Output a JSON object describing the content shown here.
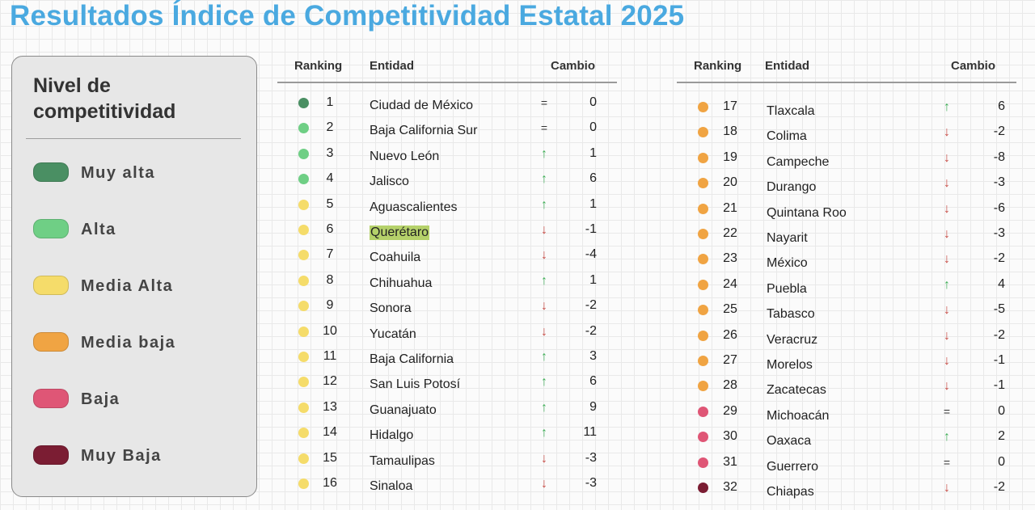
{
  "title": "Resultados Índice de Competitividad Estatal 2025",
  "legend": {
    "title": "Nivel de competitividad",
    "items": [
      {
        "label": "Muy alta",
        "color": "#4a8f63"
      },
      {
        "label": "Alta",
        "color": "#6fcf85"
      },
      {
        "label": "Media Alta",
        "color": "#f5dc6a"
      },
      {
        "label": "Media baja",
        "color": "#f0a443"
      },
      {
        "label": "Baja",
        "color": "#df5676"
      },
      {
        "label": "Muy Baja",
        "color": "#7b1d33"
      }
    ]
  },
  "headers": {
    "ranking": "Ranking",
    "entidad": "Entidad",
    "cambio": "Cambio"
  },
  "colors": {
    "muy_alta": "#4a8f63",
    "alta": "#6fcf85",
    "media_alta": "#f5dc6a",
    "media_baja": "#f0a443",
    "baja": "#df5676",
    "muy_baja": "#7b1d33"
  },
  "table_left": [
    {
      "rank": "1",
      "entity": "Ciudad de México",
      "trend": "=",
      "change": "0",
      "level": "muy_alta"
    },
    {
      "rank": "2",
      "entity": "Baja California Sur",
      "trend": "=",
      "change": "0",
      "level": "alta"
    },
    {
      "rank": "3",
      "entity": "Nuevo León",
      "trend": "↑",
      "change": "1",
      "level": "alta"
    },
    {
      "rank": "4",
      "entity": "Jalisco",
      "trend": "↑",
      "change": "6",
      "level": "alta"
    },
    {
      "rank": "5",
      "entity": "Aguascalientes",
      "trend": "↑",
      "change": "1",
      "level": "media_alta"
    },
    {
      "rank": "6",
      "entity": "Querétaro",
      "trend": "↓",
      "change": "-1",
      "level": "media_alta",
      "highlight": true
    },
    {
      "rank": "7",
      "entity": "Coahuila",
      "trend": "↓",
      "change": "-4",
      "level": "media_alta"
    },
    {
      "rank": "8",
      "entity": "Chihuahua",
      "trend": "↑",
      "change": "1",
      "level": "media_alta"
    },
    {
      "rank": "9",
      "entity": "Sonora",
      "trend": "↓",
      "change": "-2",
      "level": "media_alta"
    },
    {
      "rank": "10",
      "entity": "Yucatán",
      "trend": "↓",
      "change": "-2",
      "level": "media_alta"
    },
    {
      "rank": "11",
      "entity": "Baja California",
      "trend": "↑",
      "change": "3",
      "level": "media_alta"
    },
    {
      "rank": "12",
      "entity": "San Luis Potosí",
      "trend": "↑",
      "change": "6",
      "level": "media_alta"
    },
    {
      "rank": "13",
      "entity": "Guanajuato",
      "trend": "↑",
      "change": "9",
      "level": "media_alta"
    },
    {
      "rank": "14",
      "entity": "Hidalgo",
      "trend": "↑",
      "change": "11",
      "level": "media_alta"
    },
    {
      "rank": "15",
      "entity": "Tamaulipas",
      "trend": "↓",
      "change": "-3",
      "level": "media_alta"
    },
    {
      "rank": "16",
      "entity": "Sinaloa",
      "trend": "↓",
      "change": "-3",
      "level": "media_alta"
    }
  ],
  "table_right": [
    {
      "rank": "17",
      "entity": "Tlaxcala",
      "trend": "↑",
      "change": "6",
      "level": "media_baja"
    },
    {
      "rank": "18",
      "entity": "Colima",
      "trend": "↓",
      "change": "-2",
      "level": "media_baja"
    },
    {
      "rank": "19",
      "entity": "Campeche",
      "trend": "↓",
      "change": "-8",
      "level": "media_baja"
    },
    {
      "rank": "20",
      "entity": "Durango",
      "trend": "↓",
      "change": "-3",
      "level": "media_baja"
    },
    {
      "rank": "21",
      "entity": "Quintana Roo",
      "trend": "↓",
      "change": "-6",
      "level": "media_baja"
    },
    {
      "rank": "22",
      "entity": "Nayarit",
      "trend": "↓",
      "change": "-3",
      "level": "media_baja"
    },
    {
      "rank": "23",
      "entity": "México",
      "trend": "↓",
      "change": "-2",
      "level": "media_baja"
    },
    {
      "rank": "24",
      "entity": "Puebla",
      "trend": "↑",
      "change": "4",
      "level": "media_baja"
    },
    {
      "rank": "25",
      "entity": "Tabasco",
      "trend": "↓",
      "change": "-5",
      "level": "media_baja"
    },
    {
      "rank": "26",
      "entity": "Veracruz",
      "trend": "↓",
      "change": "-2",
      "level": "media_baja"
    },
    {
      "rank": "27",
      "entity": "Morelos",
      "trend": "↓",
      "change": "-1",
      "level": "media_baja"
    },
    {
      "rank": "28",
      "entity": "Zacatecas",
      "trend": "↓",
      "change": "-1",
      "level": "media_baja"
    },
    {
      "rank": "29",
      "entity": "Michoacán",
      "trend": "=",
      "change": "0",
      "level": "baja"
    },
    {
      "rank": "30",
      "entity": "Oaxaca",
      "trend": "↑",
      "change": "2",
      "level": "baja"
    },
    {
      "rank": "31",
      "entity": "Guerrero",
      "trend": "=",
      "change": "0",
      "level": "baja"
    },
    {
      "rank": "32",
      "entity": "Chiapas",
      "trend": "↓",
      "change": "-2",
      "level": "muy_baja"
    }
  ]
}
